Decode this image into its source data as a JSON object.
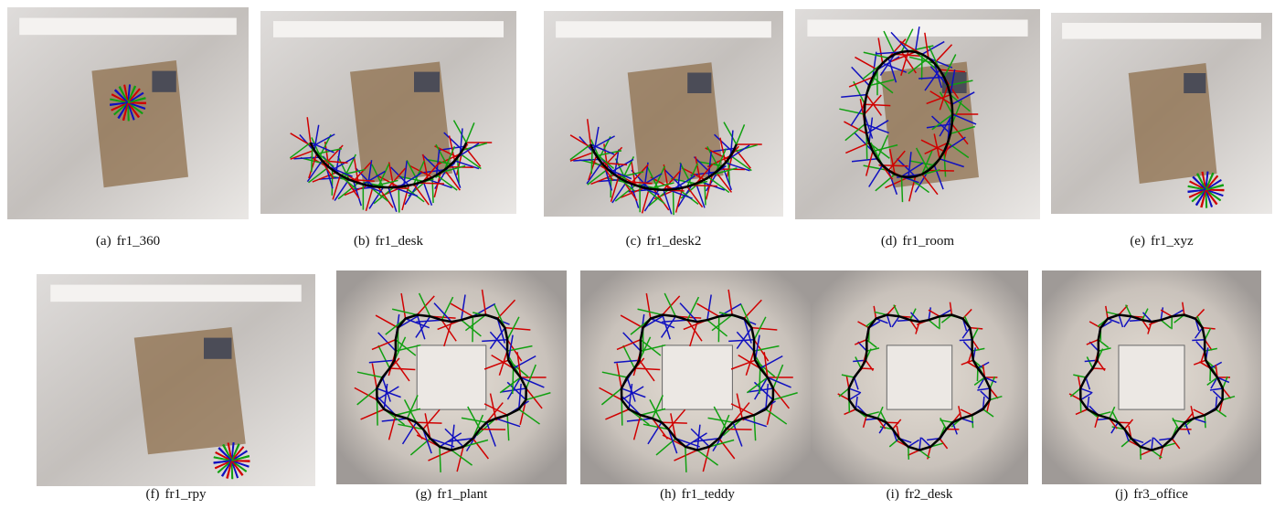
{
  "subfigures": [
    {
      "label": "(a)",
      "name": "fr1_360"
    },
    {
      "label": "(b)",
      "name": "fr1_desk"
    },
    {
      "label": "(c)",
      "name": "fr1_desk2"
    },
    {
      "label": "(d)",
      "name": "fr1_room"
    },
    {
      "label": "(e)",
      "name": "fr1_xyz"
    },
    {
      "label": "(f)",
      "name": "fr1_rpy"
    },
    {
      "label": "(g)",
      "name": "fr1_plant"
    },
    {
      "label": "(h)",
      "name": "fr1_teddy"
    },
    {
      "label": "(i)",
      "name": "fr2_desk"
    },
    {
      "label": "(j)",
      "name": "fr3_office"
    }
  ]
}
